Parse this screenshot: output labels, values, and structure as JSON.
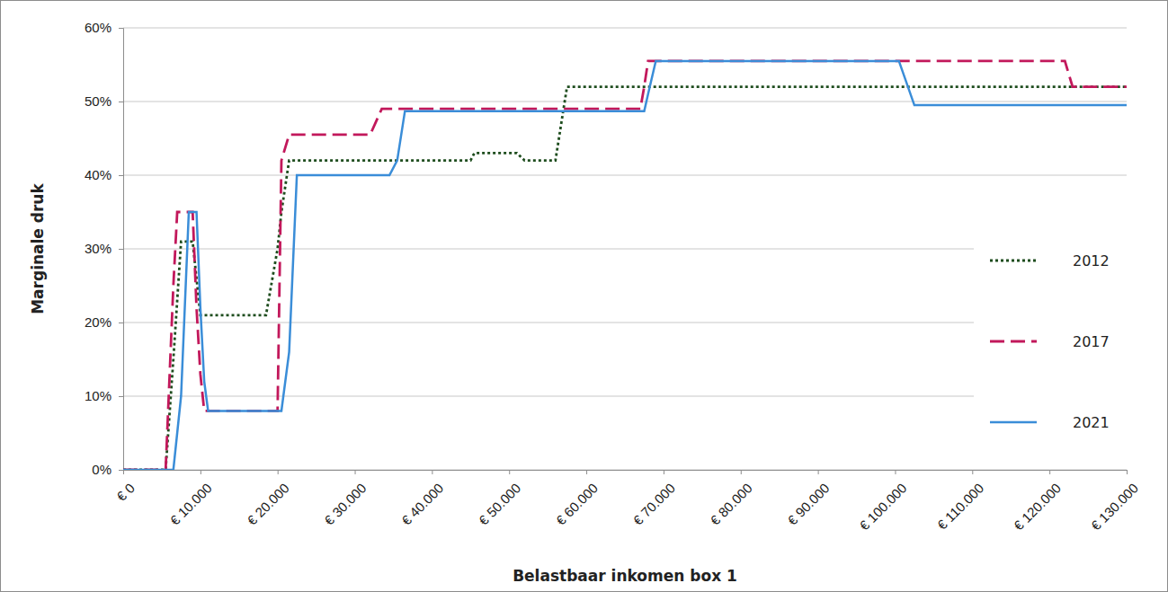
{
  "chart_data": {
    "type": "line",
    "x_label": "Belastbaar inkomen box 1",
    "y_label": "Marginale druk",
    "x": [
      0,
      5500,
      6500,
      7000,
      7500,
      8500,
      9000,
      9500,
      10000,
      10500,
      11000,
      18500,
      20000,
      20500,
      21500,
      22500,
      32000,
      33500,
      34500,
      35500,
      36500,
      45000,
      45500,
      51000,
      52000,
      56000,
      57500,
      67000,
      67500,
      68000,
      69000,
      100500,
      102500,
      122000,
      123000,
      130000
    ],
    "series": [
      {
        "name": "2012",
        "color": "#1e4d1e",
        "line_style": "dotted",
        "values": [
          0,
          0,
          15,
          23,
          31,
          31,
          31,
          26,
          21,
          21,
          21,
          21,
          30,
          35,
          42,
          42,
          42,
          42,
          42,
          42,
          42,
          42,
          43,
          43,
          42,
          42,
          52,
          52,
          52,
          52,
          52,
          52,
          52,
          52,
          52,
          52
        ]
      },
      {
        "name": "2017",
        "color": "#c2185b",
        "line_style": "dashed",
        "values": [
          0,
          0,
          25,
          35,
          35,
          35,
          35,
          22,
          13,
          8,
          8,
          8,
          8,
          42,
          45.5,
          45.5,
          45.5,
          49,
          49,
          49,
          49,
          49,
          49,
          49,
          49,
          49,
          49,
          49,
          52,
          55.5,
          55.5,
          55.5,
          55.5,
          55.5,
          52,
          52
        ]
      },
      {
        "name": "2021",
        "color": "#3a8dd8",
        "line_style": "solid",
        "values": [
          0,
          0,
          0,
          5,
          10,
          35,
          35,
          35,
          22,
          12,
          8,
          8,
          8,
          8,
          16,
          40,
          40,
          40,
          40,
          42,
          48.7,
          48.7,
          48.7,
          48.7,
          48.7,
          48.7,
          48.7,
          48.7,
          48.7,
          51,
          55.5,
          55.5,
          49.5,
          49.5,
          49.5,
          49.5
        ]
      }
    ],
    "xlim": [
      0,
      130000
    ],
    "xticks": [
      {
        "value": 0,
        "label": "€ 0"
      },
      {
        "value": 10000,
        "label": "€ 10.000"
      },
      {
        "value": 20000,
        "label": "€ 20.000"
      },
      {
        "value": 30000,
        "label": "€ 30.000"
      },
      {
        "value": 40000,
        "label": "€ 40.000"
      },
      {
        "value": 50000,
        "label": "€ 50.000"
      },
      {
        "value": 60000,
        "label": "€ 60.000"
      },
      {
        "value": 70000,
        "label": "€ 70.000"
      },
      {
        "value": 80000,
        "label": "€ 80.000"
      },
      {
        "value": 90000,
        "label": "€ 90.000"
      },
      {
        "value": 100000,
        "label": "€ 100.000"
      },
      {
        "value": 110000,
        "label": "€ 110.000"
      },
      {
        "value": 120000,
        "label": "€ 120.000"
      },
      {
        "value": 130000,
        "label": "€ 130.000"
      }
    ],
    "ylim": [
      0,
      60
    ],
    "yticks": [
      {
        "value": 0,
        "label": "0%"
      },
      {
        "value": 10,
        "label": "10%"
      },
      {
        "value": 20,
        "label": "20%"
      },
      {
        "value": 30,
        "label": "30%"
      },
      {
        "value": 40,
        "label": "40%"
      },
      {
        "value": 50,
        "label": "50%"
      },
      {
        "value": 60,
        "label": "60%"
      }
    ],
    "grid": true,
    "legend": "right"
  }
}
